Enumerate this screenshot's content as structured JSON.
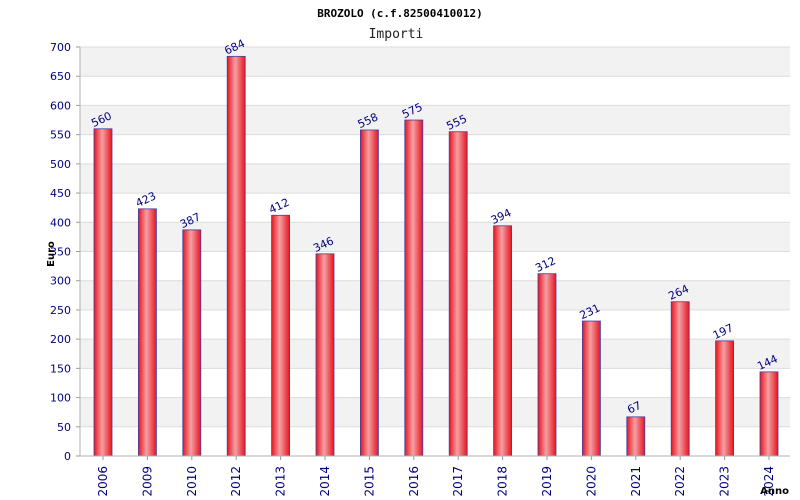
{
  "chart_data": {
    "type": "bar",
    "title": "BROZOLO (c.f.82500410012)",
    "subtitle": "Importi",
    "xlabel": "Anno",
    "ylabel": "Euro",
    "ylim": [
      0,
      700
    ],
    "yticks": [
      0,
      50,
      100,
      150,
      200,
      250,
      300,
      350,
      400,
      450,
      500,
      550,
      600,
      650,
      700
    ],
    "categories": [
      "2006",
      "2009",
      "2010",
      "2012",
      "2013",
      "2014",
      "2015",
      "2016",
      "2017",
      "2018",
      "2019",
      "2020",
      "2021",
      "2022",
      "2023",
      "2024"
    ],
    "values": [
      560,
      423,
      387,
      684,
      412,
      346,
      558,
      575,
      555,
      394,
      312,
      231,
      67,
      264,
      197,
      144
    ],
    "bar_color": "#e8141e",
    "bar_highlight": "#f4a0a4",
    "bar_edge": "#4040a0",
    "band_color": "#f2f2f2",
    "grid": true
  }
}
